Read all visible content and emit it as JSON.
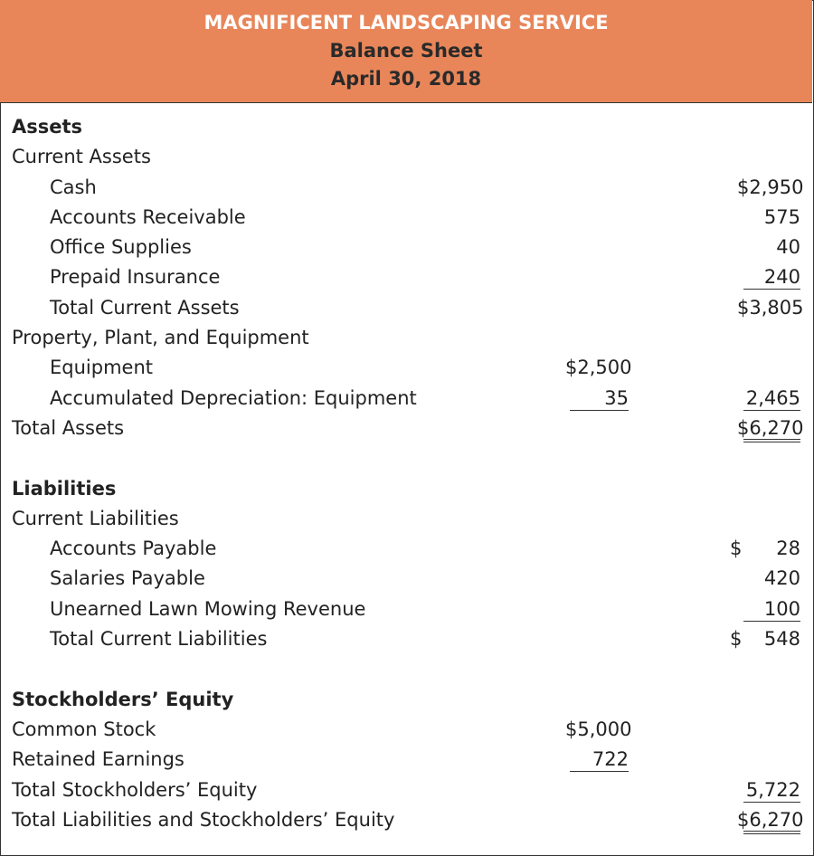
{
  "header": {
    "company": "MAGNIFICENT LANDSCAPING SERVICE",
    "statement": "Balance Sheet",
    "date": "April 30, 2018",
    "background_color": "#E8865A"
  },
  "rows": [
    {
      "label": "Assets",
      "bold": true
    },
    {
      "label": "Current Assets"
    },
    {
      "label": "Cash",
      "indent": true,
      "col2": "$2,950"
    },
    {
      "label": "Accounts Receivable",
      "indent": true,
      "col2": "575"
    },
    {
      "label": "Office Supplies",
      "indent": true,
      "col2": "40"
    },
    {
      "label": "Prepaid Insurance",
      "indent": true,
      "col2": "240",
      "col2_underline": "single"
    },
    {
      "label": "Total Current Assets",
      "indent": true,
      "col2": "$3,805"
    },
    {
      "label": "Property, Plant, and Equipment"
    },
    {
      "label": "Equipment",
      "indent": true,
      "col1": "$2,500"
    },
    {
      "label": "Accumulated Depreciation: Equipment",
      "indent": true,
      "col1": "35",
      "col1_underline": "single",
      "col2": "2,465",
      "col2_underline": "single"
    },
    {
      "label": "Total Assets",
      "col2": "$6,270",
      "col2_underline": "double"
    },
    {
      "label": ""
    },
    {
      "label": "Liabilities",
      "bold": true
    },
    {
      "label": "Current Liabilities"
    },
    {
      "label": "Accounts Payable",
      "indent": true,
      "col2_dollar": "$",
      "col2": "28"
    },
    {
      "label": "Salaries Payable",
      "indent": true,
      "col2": "420"
    },
    {
      "label": "Unearned Lawn Mowing Revenue",
      "indent": true,
      "col2": "100",
      "col2_underline": "single"
    },
    {
      "label": "Total Current Liabilities",
      "indent": true,
      "col2_dollar": "$",
      "col2": "548"
    },
    {
      "label": ""
    },
    {
      "label": "Stockholders’ Equity",
      "bold": true
    },
    {
      "label": "Common Stock",
      "col1": "$5,000"
    },
    {
      "label": "Retained Earnings",
      "col1": "722",
      "col1_underline": "single"
    },
    {
      "label": "Total Stockholders’ Equity",
      "col2": "5,722",
      "col2_underline": "single"
    },
    {
      "label": "Total Liabilities and Stockholders’ Equity",
      "col2": "$6,270",
      "col2_underline": "double"
    }
  ]
}
